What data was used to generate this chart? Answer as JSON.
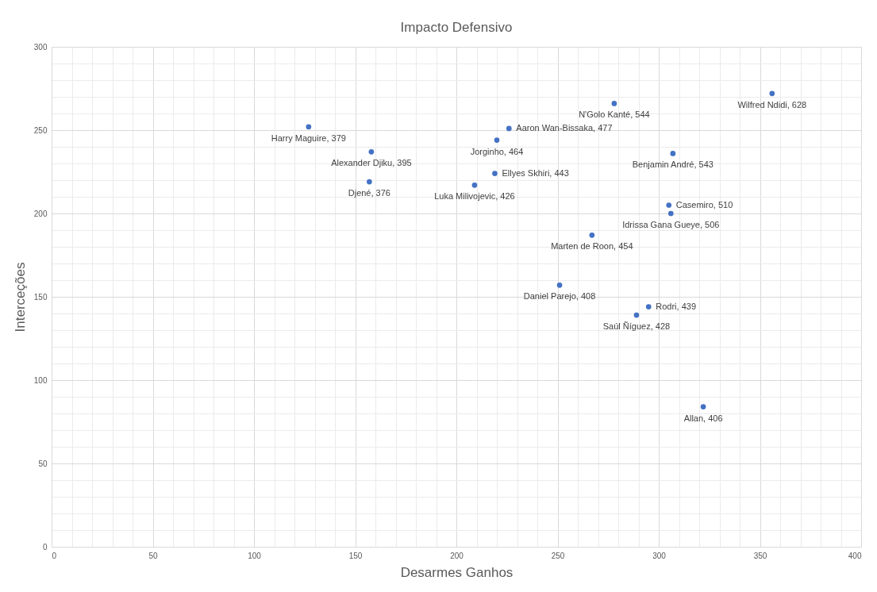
{
  "chart_data": {
    "type": "scatter",
    "title": "Impacto Defensivo",
    "xlabel": "Desarmes Ganhos",
    "ylabel": "Interceções",
    "x": [
      127,
      158,
      157,
      226,
      220,
      219,
      209,
      278,
      356,
      307,
      305,
      306,
      267,
      251,
      295,
      289,
      322
    ],
    "series": [
      {
        "color": "#4472c4",
        "values": [
          252,
          237,
          219,
          251,
          244,
          224,
          217,
          266,
          272,
          236,
          205,
          200,
          187,
          157,
          144,
          139,
          84
        ]
      }
    ],
    "annotations": [
      {
        "text": "Harry Maguire, 379",
        "x": 127,
        "y": 252
      },
      {
        "text": "Alexander Djiku, 395",
        "x": 158,
        "y": 237
      },
      {
        "text": "Djené, 376",
        "x": 157,
        "y": 219
      },
      {
        "text": "Aaron Wan-Bissaka, 477",
        "x": 226,
        "y": 251
      },
      {
        "text": "Jorginho, 464",
        "x": 220,
        "y": 244
      },
      {
        "text": "Ellyes Skhiri, 443",
        "x": 219,
        "y": 224
      },
      {
        "text": "Luka Milivojevic, 426",
        "x": 209,
        "y": 217
      },
      {
        "text": "N'Golo Kanté, 544",
        "x": 278,
        "y": 266
      },
      {
        "text": "Wilfred Ndidi, 628",
        "x": 356,
        "y": 272
      },
      {
        "text": "Benjamin André, 543",
        "x": 307,
        "y": 236
      },
      {
        "text": "Casemiro, 510",
        "x": 305,
        "y": 205
      },
      {
        "text": "Idrissa Gana Gueye, 506",
        "x": 306,
        "y": 200
      },
      {
        "text": "Marten de Roon, 454",
        "x": 267,
        "y": 187
      },
      {
        "text": "Daniel Parejo, 408",
        "x": 251,
        "y": 157
      },
      {
        "text": "Rodri, 439",
        "x": 295,
        "y": 144
      },
      {
        "text": "Saúl Ñíguez, 428",
        "x": 289,
        "y": 139
      },
      {
        "text": "Allan, 406",
        "x": 322,
        "y": 84
      }
    ],
    "xlim": [
      0,
      400
    ],
    "xticks": [
      0,
      {
        "value": 10,
        "label": null
      },
      {
        "value": 20,
        "label": null
      },
      {
        "value": 30,
        "label": null
      },
      {
        "value": 40,
        "label": null
      },
      50,
      {
        "value": 60,
        "label": null
      },
      {
        "value": 70,
        "label": null
      },
      {
        "value": 80,
        "label": null
      },
      {
        "value": 90,
        "label": null
      },
      100,
      {
        "value": 110,
        "label": null
      },
      {
        "value": 120,
        "label": null
      },
      {
        "value": 130,
        "label": null
      },
      {
        "value": 140,
        "label": null
      },
      150,
      {
        "value": 160,
        "label": null
      },
      {
        "value": 170,
        "label": null
      },
      {
        "value": 180,
        "label": null
      },
      {
        "value": 190,
        "label": null
      },
      200,
      {
        "value": 210,
        "label": null
      },
      {
        "value": 220,
        "label": null
      },
      {
        "value": 230,
        "label": null
      },
      {
        "value": 240,
        "label": null
      },
      250,
      {
        "value": 260,
        "label": null
      },
      {
        "value": 270,
        "label": null
      },
      {
        "value": 280,
        "label": null
      },
      {
        "value": 290,
        "label": null
      },
      300,
      {
        "value": 310,
        "label": null
      },
      {
        "value": 320,
        "label": null
      },
      {
        "value": 330,
        "label": null
      },
      {
        "value": 340,
        "label": null
      },
      350,
      {
        "value": 360,
        "label": null
      },
      {
        "value": 370,
        "label": null
      },
      {
        "value": 380,
        "label": null
      },
      {
        "value": 390,
        "label": null
      },
      400
    ],
    "ylim": [
      0,
      300
    ],
    "yticks": [
      0,
      {
        "value": 10,
        "label": null
      },
      {
        "value": 20,
        "label": null
      },
      {
        "value": 30,
        "label": null
      },
      {
        "value": 40,
        "label": null
      },
      50,
      {
        "value": 60,
        "label": null
      },
      {
        "value": 70,
        "label": null
      },
      {
        "value": 80,
        "label": null
      },
      {
        "value": 90,
        "label": null
      },
      100,
      {
        "value": 110,
        "label": null
      },
      {
        "value": 120,
        "label": null
      },
      {
        "value": 130,
        "label": null
      },
      {
        "value": 140,
        "label": null
      },
      150,
      {
        "value": 160,
        "label": null
      },
      {
        "value": 170,
        "label": null
      },
      {
        "value": 180,
        "label": null
      },
      {
        "value": 190,
        "label": null
      },
      200,
      {
        "value": 210,
        "label": null
      },
      {
        "value": 220,
        "label": null
      },
      {
        "value": 230,
        "label": null
      },
      {
        "value": 240,
        "label": null
      },
      250,
      {
        "value": 260,
        "label": null
      },
      {
        "value": 270,
        "label": null
      },
      {
        "value": 280,
        "label": null
      },
      {
        "value": 290,
        "label": null
      },
      300
    ],
    "grid": true,
    "marker": "circle"
  }
}
